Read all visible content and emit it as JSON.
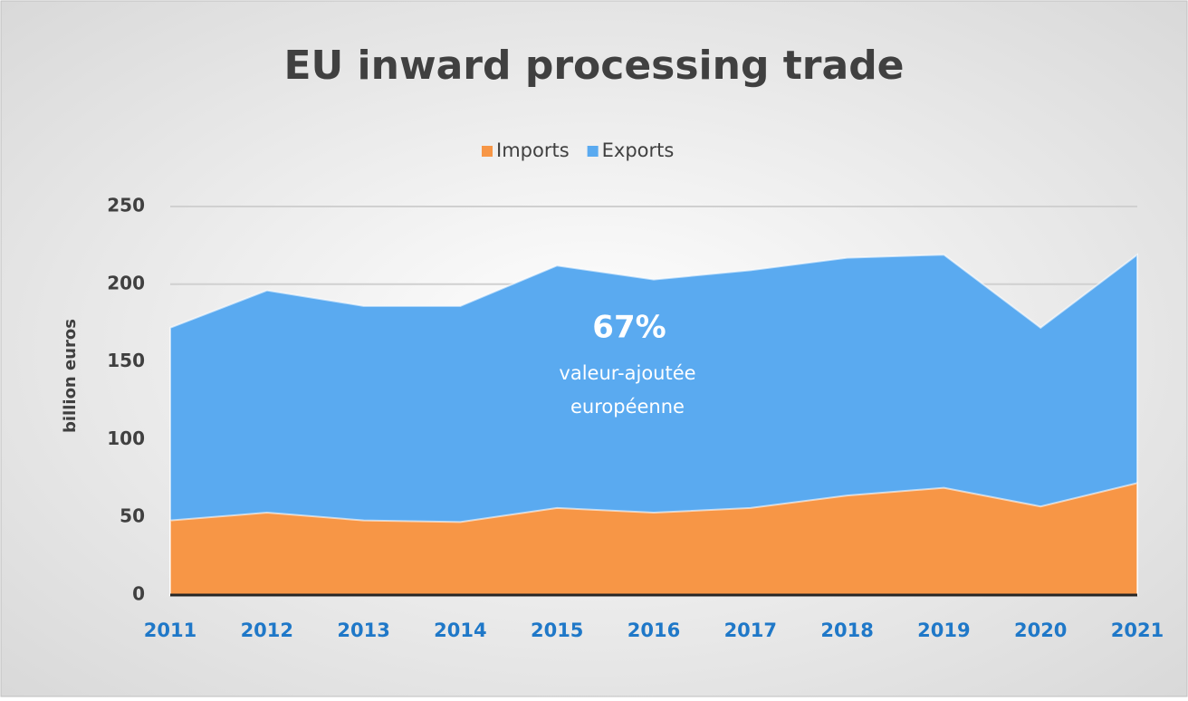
{
  "chart_data": {
    "type": "area",
    "title": "EU inward processing trade",
    "y_label": "billion euros",
    "categories": [
      "2011",
      "2012",
      "2013",
      "2014",
      "2015",
      "2016",
      "2017",
      "2018",
      "2019",
      "2020",
      "2021"
    ],
    "series": [
      {
        "name": "Imports",
        "color": "#f79646",
        "values": [
          48,
          53,
          48,
          47,
          56,
          53,
          56,
          64,
          69,
          57,
          72
        ]
      },
      {
        "name": "Exports",
        "color": "#5aaaf0",
        "values": [
          172,
          196,
          186,
          186,
          212,
          203,
          209,
          217,
          219,
          172,
          219
        ]
      }
    ],
    "ylim": [
      0,
      250
    ],
    "yticks": [
      0,
      50,
      100,
      150,
      200,
      250
    ],
    "grid": true,
    "legend": "top",
    "annotations": [
      "67%",
      "valeur-ajoutée",
      "européenne"
    ]
  }
}
